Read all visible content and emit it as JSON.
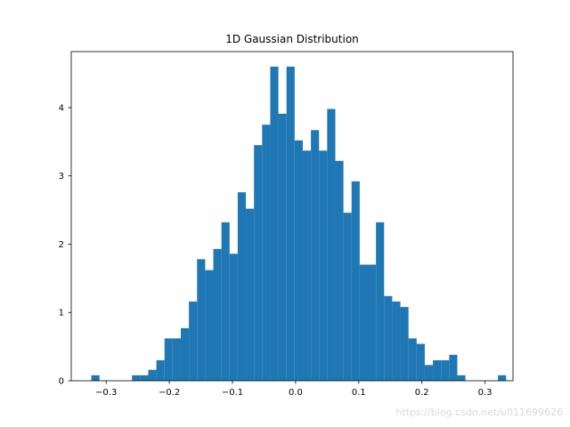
{
  "chart_data": {
    "type": "bar",
    "title": "1D Gaussian Distribution",
    "xlabel": "",
    "ylabel": "",
    "xlim": [
      -0.3553,
      0.3443
    ],
    "ylim": [
      0,
      4.82
    ],
    "xticks": [
      -0.3,
      -0.2,
      -0.1,
      0.0,
      0.1,
      0.2,
      0.3
    ],
    "xtick_labels": [
      "−0.3",
      "−0.2",
      "−0.1",
      "0.0",
      "0.1",
      "0.2",
      "0.3"
    ],
    "yticks": [
      0,
      1,
      2,
      3,
      4
    ],
    "ytick_labels": [
      "0",
      "1",
      "2",
      "3",
      "4"
    ],
    "grid": false,
    "bar_color": "#1f77b4",
    "bin_start": -0.3235,
    "bin_width": 0.01288,
    "values": [
      0.08,
      0.0,
      0.0,
      0.0,
      0.0,
      0.08,
      0.08,
      0.16,
      0.3,
      0.62,
      0.62,
      0.77,
      1.16,
      1.78,
      1.62,
      1.93,
      2.32,
      1.86,
      2.76,
      2.52,
      3.45,
      3.75,
      4.6,
      3.91,
      4.6,
      3.52,
      3.37,
      3.67,
      3.37,
      3.98,
      3.22,
      2.46,
      2.92,
      1.7,
      1.7,
      2.32,
      1.24,
      1.16,
      1.08,
      0.62,
      0.54,
      0.23,
      0.3,
      0.3,
      0.38,
      0.08,
      0.0,
      0.0,
      0.0,
      0.0,
      0.08
    ]
  },
  "watermark": "https://blog.csdn.net/u011699626"
}
